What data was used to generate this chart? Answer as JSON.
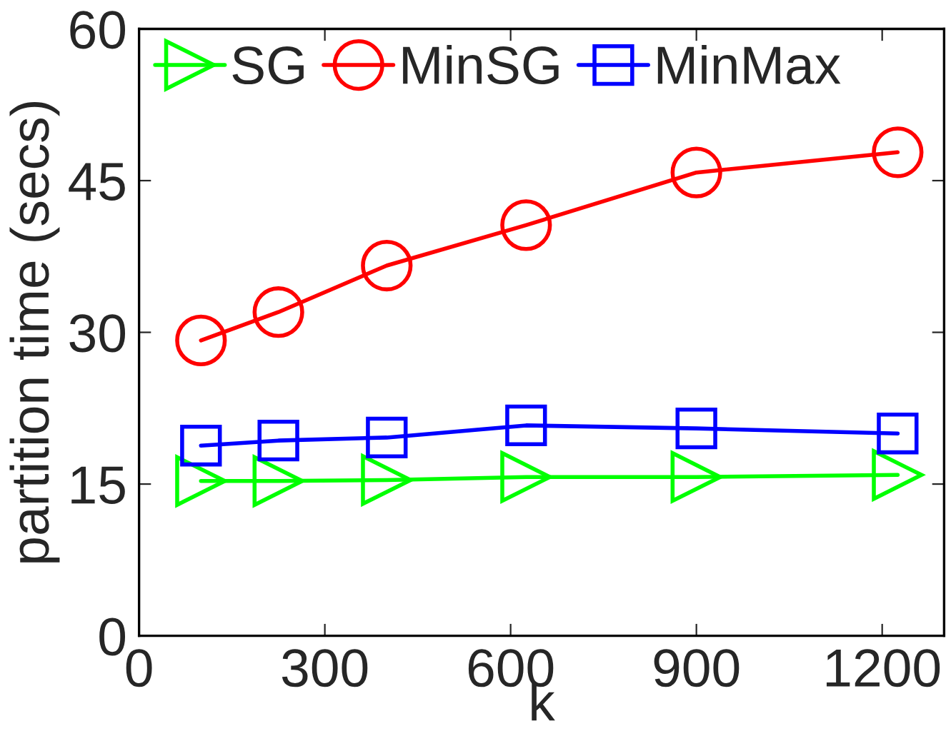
{
  "chart_data": {
    "type": "line",
    "xlabel": "k",
    "ylabel": "partition time (secs)",
    "x": [
      100,
      225,
      400,
      625,
      900,
      1225
    ],
    "series": [
      {
        "name": "SG",
        "color": "#00ff00",
        "marker": "triangle",
        "values": [
          15.3,
          15.3,
          15.4,
          15.7,
          15.7,
          15.9
        ]
      },
      {
        "name": "MinSG",
        "color": "#ff0000",
        "marker": "circle",
        "values": [
          29.2,
          32.0,
          36.6,
          40.6,
          45.8,
          47.8
        ]
      },
      {
        "name": "MinMax",
        "color": "#0000ff",
        "marker": "square",
        "values": [
          18.8,
          19.3,
          19.6,
          20.8,
          20.5,
          20.0
        ]
      }
    ],
    "xlim": [
      0,
      1300
    ],
    "xticks": [
      0,
      300,
      600,
      900,
      1200
    ],
    "ylim": [
      0,
      60
    ],
    "yticks": [
      0,
      15,
      30,
      45,
      60
    ],
    "grid": false,
    "legend": "top left",
    "line_style": "solid"
  }
}
